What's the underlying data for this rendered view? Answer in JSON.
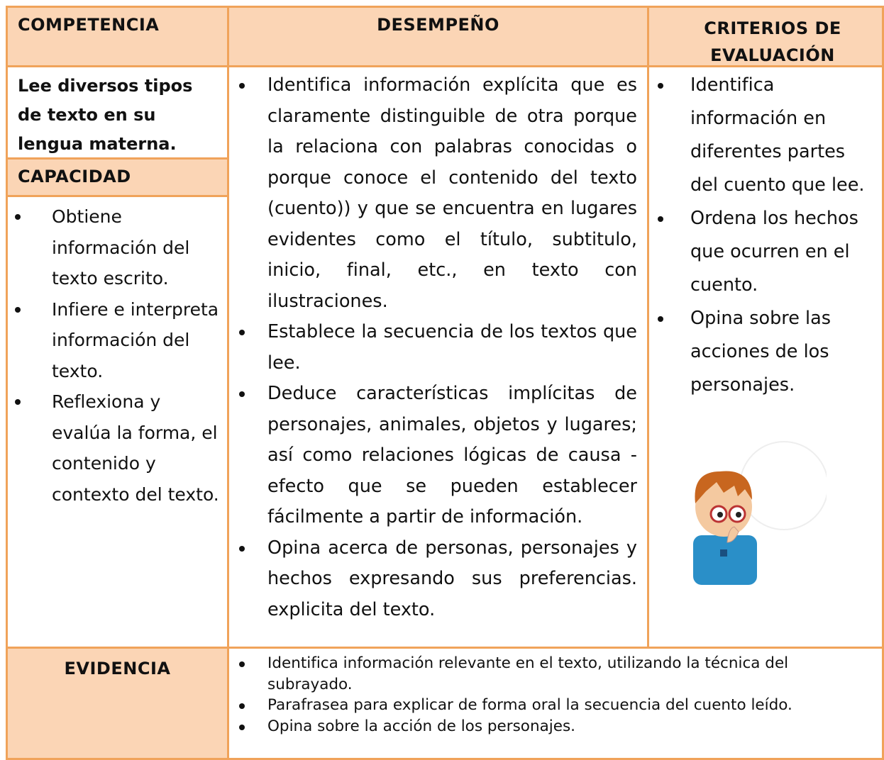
{
  "header": {
    "competencia": "COMPETENCIA",
    "desempeno": "DESEMPEÑO",
    "criterios": "CRITERIOS DE EVALUACIÓN"
  },
  "competencia": "Lee diversos tipos de texto en su lengua materna.",
  "capacidad": {
    "title": "CAPACIDAD",
    "items": [
      "Obtiene información del texto escrito.",
      "Infiere e interpreta información del texto.",
      "Reflexiona y evalúa la forma, el contenido y contexto del texto."
    ]
  },
  "desempenos": [
    "Identifica información explícita que es claramente distinguible de otra porque la relaciona con palabras conocidas o porque conoce el contenido del texto (cuento)) y que se encuentra en lugares evidentes como el título, subtitulo, inicio, final, etc., en texto con ilustraciones.",
    "Establece la secuencia de los textos que lee.",
    "Deduce características implícitas de personajes, animales, objetos y lugares; así como relaciones lógicas de causa - efecto que se pueden establecer fácilmente a partir de información.",
    "Opina acerca de personas, personajes y hechos expresando sus preferencias. explicita del texto."
  ],
  "criterios": [
    "Identifica información en diferentes partes del cuento que lee.",
    "Ordena los hechos que ocurren en el cuento.",
    "Opina sobre las acciones de los personajes."
  ],
  "evidencia": {
    "title": "EVIDENCIA",
    "items": [
      "Identifica información relevante en el texto, utilizando la técnica del subrayado.",
      "Parafrasea para explicar de forma oral la secuencia del cuento leído.",
      "Opina sobre la acción de los personajes."
    ]
  }
}
